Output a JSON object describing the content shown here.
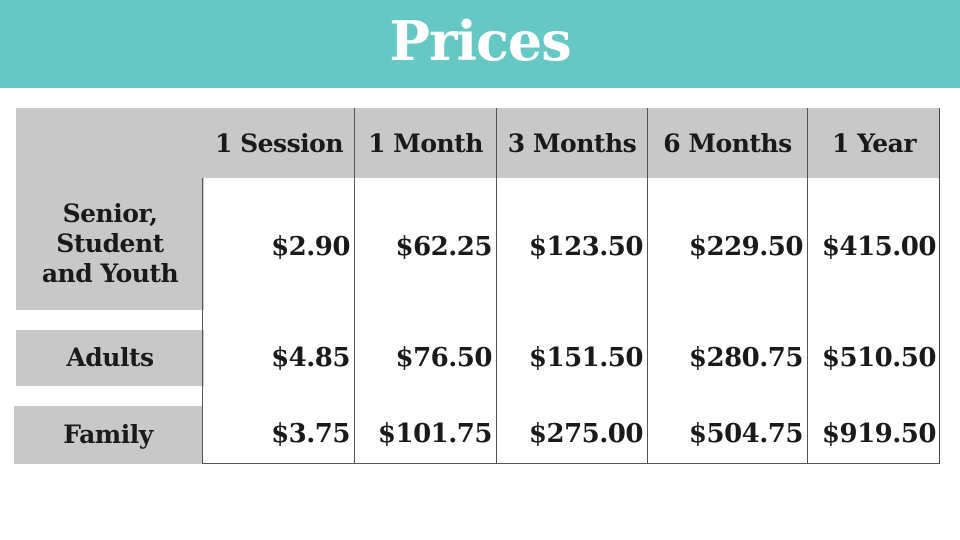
{
  "title": "Prices",
  "table": {
    "columns": [
      "1 Session",
      "1 Month",
      "3 Months",
      "6 Months",
      "1 Year"
    ],
    "rows": [
      {
        "label": "Senior,\nStudent\nand Youth",
        "values": [
          "$2.90",
          "$62.25",
          "$123.50",
          "$229.50",
          "$415.00"
        ]
      },
      {
        "label": "Adults",
        "values": [
          "$4.85",
          "$76.50",
          "$151.50",
          "$280.75",
          "$510.50"
        ]
      },
      {
        "label": "Family",
        "values": [
          "$3.75",
          "$101.75",
          "$275.00",
          "$504.75",
          "$919.50"
        ]
      }
    ]
  },
  "colors": {
    "banner": "#66c8c4",
    "header_fill": "#c8c8c8",
    "text": "#1a1a1a"
  }
}
